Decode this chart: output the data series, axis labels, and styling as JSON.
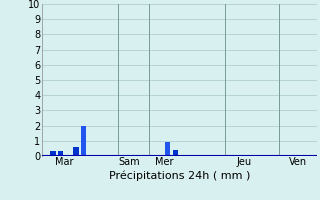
{
  "title": "",
  "xlabel": "Précipitations 24h ( mm )",
  "background_color": "#d8f0f0",
  "bar_color_dark": "#0033cc",
  "bar_color_light": "#2255ee",
  "ylim": [
    0,
    10
  ],
  "yticks": [
    0,
    1,
    2,
    3,
    4,
    5,
    6,
    7,
    8,
    9,
    10
  ],
  "tick_labels": [
    "Mar",
    "Sam",
    "Mer",
    "Jeu",
    "Ven"
  ],
  "grid_color": "#aac8c8",
  "axis_color": "#0000aa",
  "figsize": [
    3.2,
    2.0
  ],
  "dpi": 100,
  "total_slots": 36,
  "bar_x": [
    1,
    2,
    4,
    5,
    16,
    17
  ],
  "bar_h": [
    0.3,
    0.3,
    0.6,
    2.0,
    0.9,
    0.4
  ],
  "bar_colors": [
    "#0033cc",
    "#0033cc",
    "#0033cc",
    "#2255ee",
    "#2255ee",
    "#0033cc"
  ],
  "bar_width": 0.7,
  "tick_positions": [
    2.5,
    11,
    15.5,
    26,
    33
  ],
  "vline_positions": [
    9.5,
    13.5,
    23.5,
    30.5
  ],
  "xlabel_fontsize": 8,
  "ytick_fontsize": 7,
  "xtick_fontsize": 7
}
